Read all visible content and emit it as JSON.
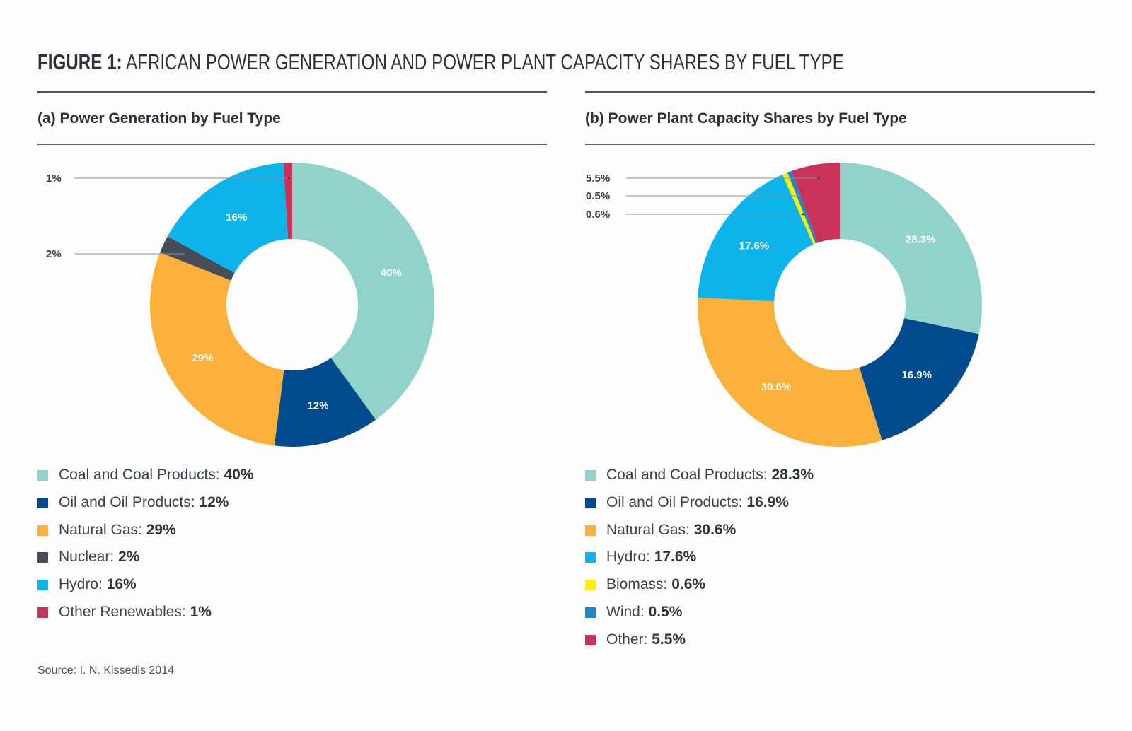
{
  "figure": {
    "title_lead": "FIGURE 1:",
    "title_rest": " AFRICAN POWER GENERATION AND POWER PLANT CAPACITY SHARES BY FUEL TYPE",
    "source": "Source: I. N. Kissedis 2014"
  },
  "chart_data": [
    {
      "type": "pie",
      "donut": true,
      "title": "(a) Power Generation by Fuel Type",
      "series": [
        {
          "name": "Coal and Coal Products",
          "value": 40,
          "label": "40%",
          "legend_value": "40%",
          "color": "#8fd3c9",
          "label_pos": "inside"
        },
        {
          "name": "Oil and Oil Products",
          "value": 12,
          "label": "12%",
          "legend_value": "12%",
          "color": "#004b8d",
          "label_pos": "inside"
        },
        {
          "name": "Natural Gas",
          "value": 29,
          "label": "29%",
          "legend_value": "29%",
          "color": "#fbb03b",
          "label_pos": "inside"
        },
        {
          "name": "Nuclear",
          "value": 2,
          "label": "2%",
          "legend_value": "2%",
          "color": "#454e57",
          "label_pos": "callout"
        },
        {
          "name": "Hydro",
          "value": 16,
          "label": "16%",
          "legend_value": "16%",
          "color": "#0db4ec",
          "label_pos": "inside"
        },
        {
          "name": "Other Renewables",
          "value": 1,
          "label": "1%",
          "legend_value": "1%",
          "color": "#c8325a",
          "label_pos": "callout"
        }
      ]
    },
    {
      "type": "pie",
      "donut": true,
      "title": "(b) Power Plant Capacity Shares by Fuel Type",
      "series": [
        {
          "name": "Coal and Coal Products",
          "value": 28.3,
          "label": "28.3%",
          "legend_value": "28.3%",
          "color": "#8fd3c9",
          "label_pos": "inside"
        },
        {
          "name": "Oil and Oil Products",
          "value": 16.9,
          "label": "16.9%",
          "legend_value": "16.9%",
          "color": "#004b8d",
          "label_pos": "inside"
        },
        {
          "name": "Natural Gas",
          "value": 30.6,
          "label": "30.6%",
          "legend_value": "30.6%",
          "color": "#fbb03b",
          "label_pos": "inside"
        },
        {
          "name": "Hydro",
          "value": 17.6,
          "label": "17.6%",
          "legend_value": "17.6%",
          "color": "#0db4ec",
          "label_pos": "inside"
        },
        {
          "name": "Biomass",
          "value": 0.6,
          "label": "0.6%",
          "legend_value": "0.6%",
          "color": "#fff200",
          "label_pos": "callout"
        },
        {
          "name": "Wind",
          "value": 0.5,
          "label": "0.5%",
          "legend_value": "0.5%",
          "color": "#1b88c9",
          "label_pos": "callout"
        },
        {
          "name": "Other",
          "value": 5.5,
          "label": "5.5%",
          "legend_value": "5.5%",
          "color": "#c8325a",
          "label_pos": "callout"
        }
      ]
    }
  ]
}
